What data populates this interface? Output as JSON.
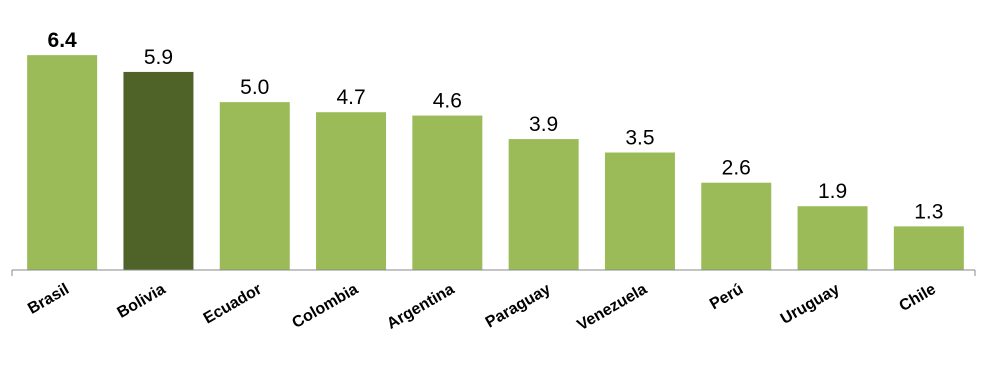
{
  "chart_data": {
    "type": "bar",
    "categories": [
      "Brasil",
      "Bolivia",
      "Ecuador",
      "Colombia",
      "Argentina",
      "Paraguay",
      "Venezuela",
      "Perú",
      "Uruguay",
      "Chile"
    ],
    "values": [
      6.4,
      5.9,
      5.0,
      4.7,
      4.6,
      3.9,
      3.5,
      2.6,
      1.9,
      1.3
    ],
    "value_labels": [
      "6.4",
      "5.9",
      "5.0",
      "4.7",
      "4.6",
      "3.9",
      "3.5",
      "2.6",
      "1.9",
      "1.3"
    ],
    "colors": [
      "#9bbb59",
      "#4f6228",
      "#9bbb59",
      "#9bbb59",
      "#9bbb59",
      "#9bbb59",
      "#9bbb59",
      "#9bbb59",
      "#9bbb59",
      "#9bbb59"
    ],
    "ylim": [
      0,
      7
    ]
  }
}
